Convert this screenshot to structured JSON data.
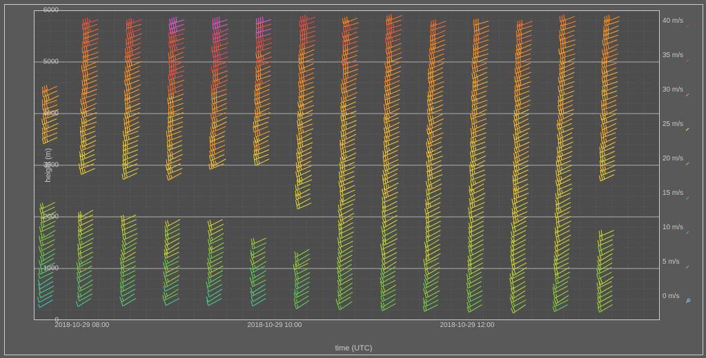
{
  "axes": {
    "xlabel": "time (UTC)",
    "ylabel": "height (m)",
    "ylim": [
      0,
      6000
    ],
    "yticks": [
      0,
      1000,
      2000,
      3000,
      4000,
      5000,
      6000
    ],
    "minor_y_step": 200,
    "xlim_hours": [
      7.5,
      14.0
    ],
    "xticks": [
      {
        "h": 8.0,
        "label": "2018-10-29 08:00"
      },
      {
        "h": 10.0,
        "label": "2018-10-29 10:00"
      },
      {
        "h": 12.0,
        "label": "2018-10-29 12:00"
      }
    ],
    "minor_x_step_h": 0.1667,
    "background": "#4d4d4d",
    "frame_bg": "#595959",
    "grid_minor_color": "#6f6f6f",
    "grid_major_color": "#b0b0b0",
    "text_color": "#cccccc",
    "fontsize": 11
  },
  "legend": {
    "title_suffix": "m/s",
    "items": [
      {
        "v": 40,
        "label": "40 m/s",
        "color": "#d94040"
      },
      {
        "v": 35,
        "label": "35 m/s",
        "color": "#e04848"
      },
      {
        "v": 30,
        "label": "30 m/s",
        "color": "#ff8c1a"
      },
      {
        "v": 25,
        "label": "25 m/s",
        "color": "#e5d820"
      },
      {
        "v": 20,
        "label": "20 m/s",
        "color": "#7bd13c"
      },
      {
        "v": 15,
        "label": "15 m/s",
        "color": "#2fbf8f"
      },
      {
        "v": 10,
        "label": "10 m/s",
        "color": "#2bb8d1"
      },
      {
        "v": 5,
        "label": "5 m/s",
        "color": "#5cb3e0"
      },
      {
        "v": 0,
        "label": "0 m/s",
        "color": "#88c0e8"
      }
    ]
  },
  "colorscale": [
    {
      "v": 0,
      "c": "#88c0e8"
    },
    {
      "v": 5,
      "c": "#3dbce0"
    },
    {
      "v": 10,
      "c": "#3dcf9b"
    },
    {
      "v": 15,
      "c": "#6dcf3d"
    },
    {
      "v": 20,
      "c": "#c8d62b"
    },
    {
      "v": 25,
      "c": "#f6ca2b"
    },
    {
      "v": 30,
      "c": "#ff8e1a"
    },
    {
      "v": 35,
      "c": "#e64545"
    },
    {
      "v": 38,
      "c": "#e05bd6"
    },
    {
      "v": 42,
      "c": "#d94040"
    }
  ],
  "profiles": [
    {
      "t": 7.7,
      "h0": 390,
      "h1": 4600,
      "gap": [
        2300,
        3500
      ],
      "s0": 8,
      "s1": 30,
      "noise": 3
    },
    {
      "t": 8.1,
      "h0": 420,
      "h1": 5900,
      "gap": [
        2200,
        2900
      ],
      "s0": 12,
      "s1": 34,
      "noise": 4
    },
    {
      "t": 8.55,
      "h0": 420,
      "h1": 5900,
      "gap": [
        2100,
        2800
      ],
      "s0": 12,
      "s1": 34,
      "noise": 4
    },
    {
      "t": 9.0,
      "h0": 420,
      "h1": 5900,
      "gap": [
        2000,
        2800
      ],
      "s0": 12,
      "s1": 36,
      "noise": 5
    },
    {
      "t": 9.45,
      "h0": 420,
      "h1": 5900,
      "gap": [
        1950,
        2950
      ],
      "s0": 11,
      "s1": 37,
      "noise": 5
    },
    {
      "t": 9.9,
      "h0": 420,
      "h1": 5900,
      "gap": [
        1650,
        3050
      ],
      "s0": 11,
      "s1": 36,
      "noise": 5
    },
    {
      "t": 10.35,
      "h0": 380,
      "h1": 5900,
      "gap": [
        1400,
        2200
      ],
      "s0": 12,
      "s1": 34,
      "noise": 4
    },
    {
      "t": 10.8,
      "h0": 360,
      "h1": 5900,
      "gap": [
        1450,
        1350
      ],
      "s0": 14,
      "s1": 33,
      "noise": 4
    },
    {
      "t": 11.25,
      "h0": 320,
      "h1": 5900,
      "gap": [
        0,
        0
      ],
      "s0": 14,
      "s1": 33,
      "noise": 4
    },
    {
      "t": 11.7,
      "h0": 300,
      "h1": 5800,
      "gap": [
        0,
        0
      ],
      "s0": 15,
      "s1": 32,
      "noise": 3
    },
    {
      "t": 12.15,
      "h0": 300,
      "h1": 5800,
      "gap": [
        0,
        0
      ],
      "s0": 15,
      "s1": 31,
      "noise": 3
    },
    {
      "t": 12.6,
      "h0": 300,
      "h1": 5800,
      "gap": [
        0,
        0
      ],
      "s0": 17,
      "s1": 31,
      "noise": 3
    },
    {
      "t": 13.05,
      "h0": 300,
      "h1": 5900,
      "gap": [
        0,
        0
      ],
      "s0": 16,
      "s1": 31,
      "noise": 3
    },
    {
      "t": 13.5,
      "h0": 300,
      "h1": 5900,
      "gap": [
        1800,
        2800
      ],
      "s0": 16,
      "s1": 31,
      "noise": 4
    }
  ],
  "barb": {
    "shaft_len": 22,
    "full_tick": 8,
    "half_tick": 5,
    "dir_deg": 245,
    "drift": 0.0018
  }
}
